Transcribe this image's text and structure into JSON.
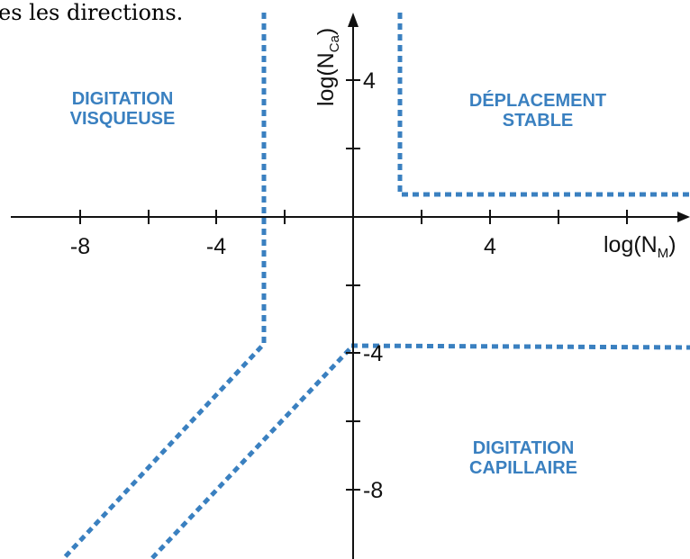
{
  "caption_fragment": "es les directions.",
  "axes": {
    "x_label": "log(N",
    "x_subscript": "M",
    "x_label_close": ")",
    "y_label": "log(N",
    "y_subscript": "Ca",
    "y_label_close": ")",
    "x_tick_labels": [
      "-8",
      "-4",
      "4"
    ],
    "y_tick_labels": [
      "4",
      "-4",
      "-8"
    ]
  },
  "regions": {
    "viscous_fingering": [
      "DIGITATION",
      "VISQUEUSE"
    ],
    "stable_displacement": [
      "DÉPLACEMENT",
      "STABLE"
    ],
    "capillary_fingering": [
      "DIGITATION",
      "CAPILLAIRE"
    ]
  },
  "colors": {
    "boundary": "#3a80c0",
    "axes": "#111111"
  }
}
